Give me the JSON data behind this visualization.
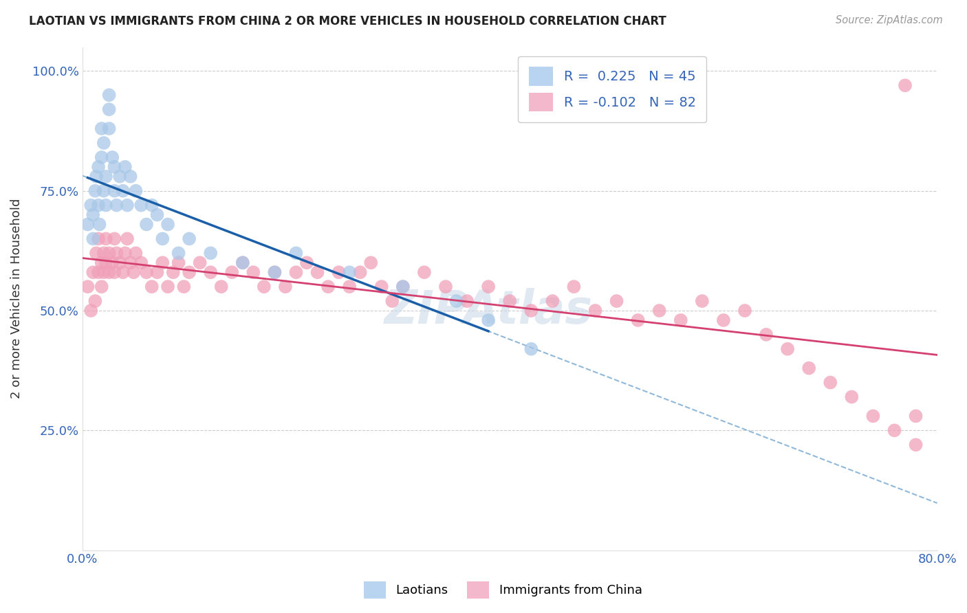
{
  "title": "LAOTIAN VS IMMIGRANTS FROM CHINA 2 OR MORE VEHICLES IN HOUSEHOLD CORRELATION CHART",
  "source": "Source: ZipAtlas.com",
  "ylabel": "2 or more Vehicles in Household",
  "xlim": [
    0.0,
    0.8
  ],
  "ylim": [
    0.0,
    1.05
  ],
  "blue_color": "#a8c8e8",
  "pink_color": "#f0a0b8",
  "blue_line_color": "#1a5fa8",
  "pink_line_color": "#d44070",
  "dashed_line_color": "#90b8d8",
  "blue_scatter_x": [
    0.005,
    0.008,
    0.01,
    0.01,
    0.012,
    0.013,
    0.015,
    0.015,
    0.016,
    0.018,
    0.018,
    0.02,
    0.02,
    0.022,
    0.022,
    0.025,
    0.025,
    0.025,
    0.028,
    0.03,
    0.03,
    0.032,
    0.035,
    0.038,
    0.04,
    0.042,
    0.045,
    0.05,
    0.055,
    0.06,
    0.065,
    0.07,
    0.075,
    0.08,
    0.09,
    0.1,
    0.12,
    0.15,
    0.18,
    0.2,
    0.25,
    0.3,
    0.35,
    0.38,
    0.42
  ],
  "blue_scatter_y": [
    0.68,
    0.72,
    0.65,
    0.7,
    0.75,
    0.78,
    0.8,
    0.72,
    0.68,
    0.82,
    0.88,
    0.75,
    0.85,
    0.72,
    0.78,
    0.92,
    0.88,
    0.95,
    0.82,
    0.75,
    0.8,
    0.72,
    0.78,
    0.75,
    0.8,
    0.72,
    0.78,
    0.75,
    0.72,
    0.68,
    0.72,
    0.7,
    0.65,
    0.68,
    0.62,
    0.65,
    0.62,
    0.6,
    0.58,
    0.62,
    0.58,
    0.55,
    0.52,
    0.48,
    0.42
  ],
  "pink_scatter_x": [
    0.005,
    0.008,
    0.01,
    0.012,
    0.013,
    0.015,
    0.015,
    0.018,
    0.018,
    0.02,
    0.02,
    0.022,
    0.022,
    0.025,
    0.025,
    0.028,
    0.03,
    0.03,
    0.032,
    0.035,
    0.038,
    0.04,
    0.042,
    0.045,
    0.048,
    0.05,
    0.055,
    0.06,
    0.065,
    0.07,
    0.075,
    0.08,
    0.085,
    0.09,
    0.095,
    0.1,
    0.11,
    0.12,
    0.13,
    0.14,
    0.15,
    0.16,
    0.17,
    0.18,
    0.19,
    0.2,
    0.21,
    0.22,
    0.23,
    0.24,
    0.25,
    0.26,
    0.27,
    0.28,
    0.29,
    0.3,
    0.32,
    0.34,
    0.36,
    0.38,
    0.4,
    0.42,
    0.44,
    0.46,
    0.48,
    0.5,
    0.52,
    0.54,
    0.56,
    0.58,
    0.6,
    0.62,
    0.64,
    0.66,
    0.68,
    0.7,
    0.72,
    0.74,
    0.76,
    0.78,
    0.77,
    0.78
  ],
  "pink_scatter_y": [
    0.55,
    0.5,
    0.58,
    0.52,
    0.62,
    0.58,
    0.65,
    0.6,
    0.55,
    0.62,
    0.58,
    0.65,
    0.6,
    0.58,
    0.62,
    0.6,
    0.65,
    0.58,
    0.62,
    0.6,
    0.58,
    0.62,
    0.65,
    0.6,
    0.58,
    0.62,
    0.6,
    0.58,
    0.55,
    0.58,
    0.6,
    0.55,
    0.58,
    0.6,
    0.55,
    0.58,
    0.6,
    0.58,
    0.55,
    0.58,
    0.6,
    0.58,
    0.55,
    0.58,
    0.55,
    0.58,
    0.6,
    0.58,
    0.55,
    0.58,
    0.55,
    0.58,
    0.6,
    0.55,
    0.52,
    0.55,
    0.58,
    0.55,
    0.52,
    0.55,
    0.52,
    0.5,
    0.52,
    0.55,
    0.5,
    0.52,
    0.48,
    0.5,
    0.48,
    0.52,
    0.48,
    0.5,
    0.45,
    0.42,
    0.38,
    0.35,
    0.32,
    0.28,
    0.25,
    0.22,
    0.97,
    0.28
  ]
}
